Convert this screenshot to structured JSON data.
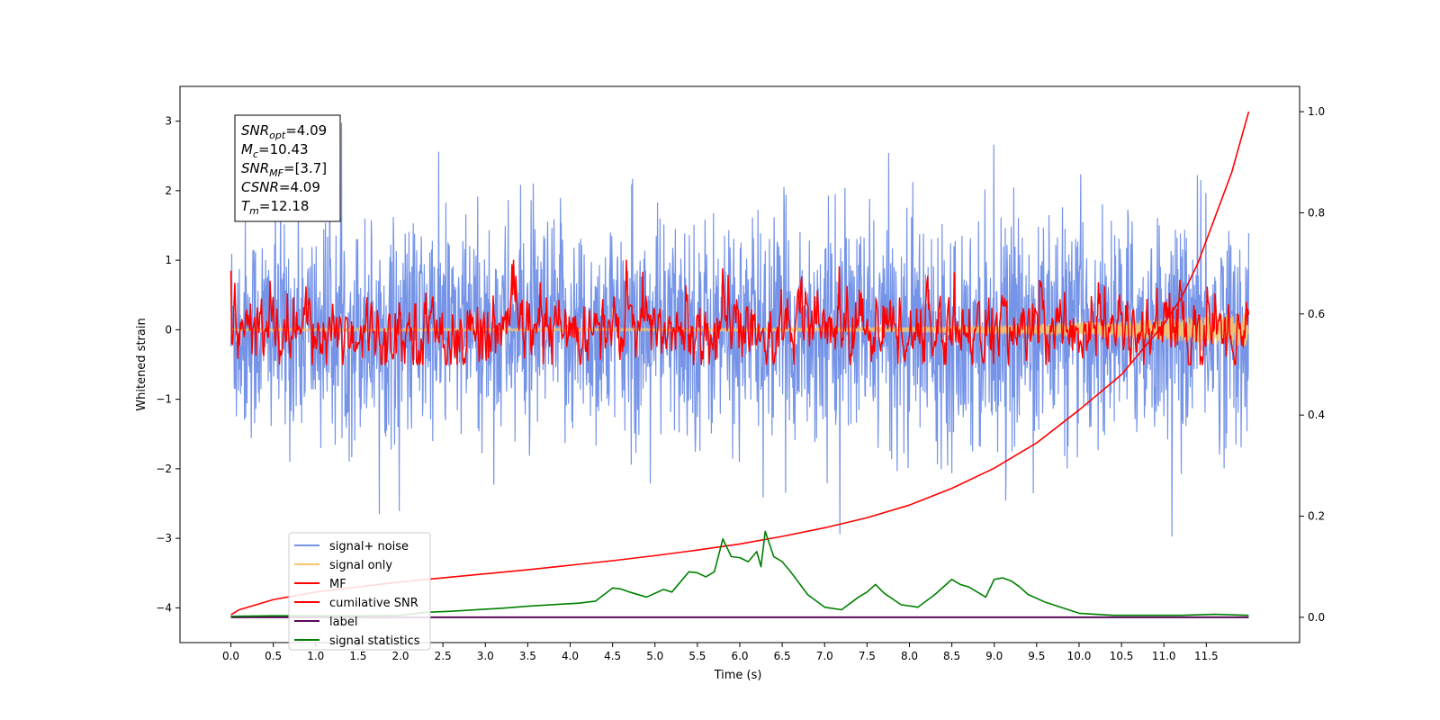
{
  "chart_data": {
    "type": "line",
    "xlabel": "Time (s)",
    "ylabel": "Whitened strain",
    "xlim": [
      -0.6,
      12.6
    ],
    "ylim": [
      -4.5,
      3.5
    ],
    "y2lim": [
      -0.05,
      1.05
    ],
    "x_ticks": [
      "0.0",
      "0.5",
      "1.0",
      "1.5",
      "2.0",
      "2.5",
      "3.0",
      "3.5",
      "4.0",
      "4.5",
      "5.0",
      "5.5",
      "6.0",
      "6.5",
      "7.0",
      "7.5",
      "8.0",
      "8.5",
      "9.0",
      "9.5",
      "10.0",
      "10.5",
      "11.0",
      "11.5"
    ],
    "y_ticks": [
      "3",
      "2",
      "1",
      "0",
      "−1",
      "−2",
      "−3",
      "−4"
    ],
    "y2_ticks": [
      "1.0",
      "0.8",
      "0.6",
      "0.4",
      "0.2",
      "0.0"
    ],
    "annotation": {
      "lines": [
        {
          "base": "SNR",
          "sub": "opt",
          "rest": "=4.09"
        },
        {
          "base": "M",
          "sub": "c",
          "rest": "=10.43"
        },
        {
          "base": "SNR",
          "sub": "MF",
          "rest": "=[3.7]"
        },
        {
          "base": "CSNR",
          "sub": "",
          "rest": "=4.09"
        },
        {
          "base": "T",
          "sub": "m",
          "rest": "=12.18"
        }
      ]
    },
    "legend": {
      "position": "lower-left",
      "entries": [
        {
          "label": "signal+ noise",
          "color": "#7594e8"
        },
        {
          "label": "signal only",
          "color": "#f5c66a"
        },
        {
          "label": "MF",
          "color": "#ff0000"
        },
        {
          "label": "cumilative SNR",
          "color": "#ff0000"
        },
        {
          "label": "label",
          "color": "#5a0a5a"
        },
        {
          "label": "signal statistics",
          "color": "#008000"
        }
      ]
    },
    "series": [
      {
        "name": "signal+ noise",
        "axis": "left",
        "style": "noise",
        "x_range": [
          0,
          12
        ],
        "sigma": 0.78,
        "samples": 2400,
        "color": "#7594e8"
      },
      {
        "name": "signal only",
        "axis": "left",
        "style": "chirp",
        "x_range": [
          0,
          12
        ],
        "color": "#f5c66a"
      },
      {
        "name": "MF",
        "axis": "left",
        "style": "mf",
        "x_range": [
          0,
          12
        ],
        "sigma": 0.22,
        "samples": 1300,
        "color": "#ff0000"
      },
      {
        "name": "cumilative SNR",
        "axis": "right",
        "color": "#ff0000",
        "x": [
          0,
          0.1,
          0.5,
          1,
          1.5,
          2,
          2.5,
          3,
          3.5,
          4,
          4.5,
          5,
          5.5,
          6,
          6.5,
          7,
          7.5,
          8,
          8.5,
          9,
          9.5,
          10,
          10.5,
          11,
          11.2,
          11.4,
          11.6,
          11.8,
          12
        ],
        "y": [
          0.005,
          0.015,
          0.035,
          0.05,
          0.06,
          0.07,
          0.078,
          0.086,
          0.094,
          0.103,
          0.112,
          0.122,
          0.133,
          0.145,
          0.16,
          0.177,
          0.197,
          0.222,
          0.255,
          0.295,
          0.345,
          0.41,
          0.48,
          0.58,
          0.63,
          0.7,
          0.79,
          0.88,
          1.0
        ]
      },
      {
        "name": "label",
        "axis": "right",
        "color": "#5a0a5a",
        "x": [
          0,
          12
        ],
        "y": [
          0.0,
          0.0
        ]
      },
      {
        "name": "signal statistics",
        "axis": "right",
        "color": "#008000",
        "x": [
          0,
          0.5,
          1,
          1.5,
          2,
          2.3,
          2.6,
          2.9,
          3.2,
          3.5,
          3.8,
          4.1,
          4.3,
          4.5,
          4.6,
          4.7,
          4.9,
          5.1,
          5.2,
          5.4,
          5.5,
          5.6,
          5.7,
          5.8,
          5.9,
          6.0,
          6.1,
          6.2,
          6.25,
          6.3,
          6.4,
          6.5,
          6.6,
          6.8,
          7.0,
          7.2,
          7.4,
          7.5,
          7.6,
          7.7,
          7.9,
          8.1,
          8.3,
          8.5,
          8.6,
          8.7,
          8.9,
          9.0,
          9.1,
          9.2,
          9.3,
          9.4,
          9.6,
          10.0,
          10.4,
          10.8,
          11.2,
          11.6,
          12
        ],
        "y": [
          0.002,
          0.003,
          0.003,
          0.003,
          0.004,
          0.01,
          0.012,
          0.015,
          0.018,
          0.022,
          0.025,
          0.028,
          0.032,
          0.058,
          0.056,
          0.05,
          0.04,
          0.055,
          0.05,
          0.09,
          0.088,
          0.08,
          0.09,
          0.155,
          0.12,
          0.118,
          0.11,
          0.13,
          0.1,
          0.17,
          0.12,
          0.11,
          0.09,
          0.045,
          0.02,
          0.015,
          0.04,
          0.05,
          0.065,
          0.048,
          0.025,
          0.02,
          0.045,
          0.075,
          0.065,
          0.06,
          0.04,
          0.075,
          0.078,
          0.072,
          0.06,
          0.045,
          0.03,
          0.008,
          0.004,
          0.004,
          0.004,
          0.006,
          0.004
        ]
      }
    ]
  }
}
